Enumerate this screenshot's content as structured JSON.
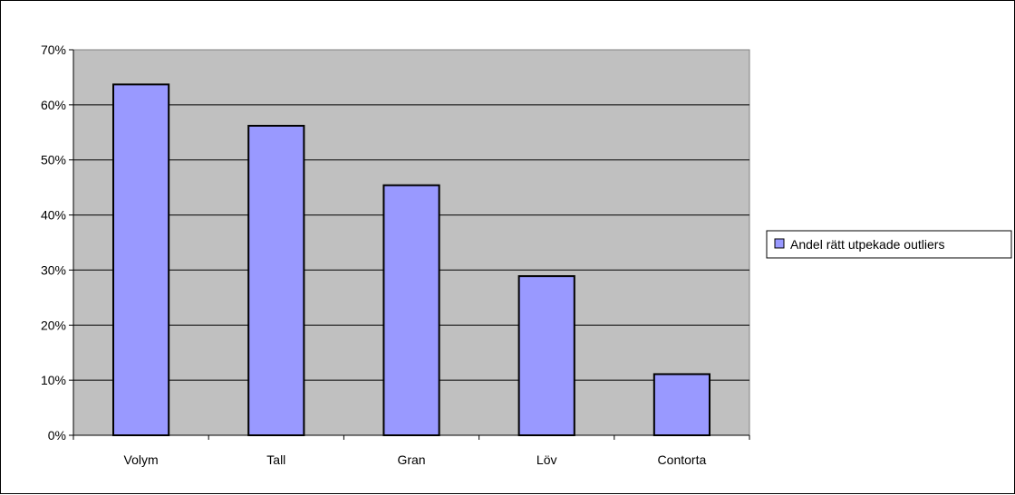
{
  "chart_data": {
    "type": "bar",
    "categories": [
      "Volym",
      "Tall",
      "Gran",
      "Löv",
      "Contorta"
    ],
    "series": [
      {
        "name": "Andel rätt utpekade outliers",
        "values": [
          0.637,
          0.562,
          0.454,
          0.289,
          0.111
        ],
        "color": "#9999ff"
      }
    ],
    "ylim": [
      0,
      0.7
    ],
    "yticks": [
      0,
      0.1,
      0.2,
      0.3,
      0.4,
      0.5,
      0.6,
      0.7
    ],
    "ytick_labels": [
      "0%",
      "10%",
      "20%",
      "30%",
      "40%",
      "50%",
      "60%",
      "70%"
    ],
    "plot_background": "#c0c0c0",
    "grid": true,
    "legend_position": "right"
  }
}
